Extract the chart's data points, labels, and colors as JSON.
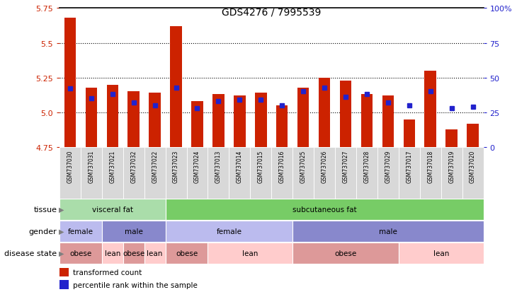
{
  "title": "GDS4276 / 7995539",
  "samples": [
    "GSM737030",
    "GSM737031",
    "GSM737021",
    "GSM737032",
    "GSM737022",
    "GSM737023",
    "GSM737024",
    "GSM737013",
    "GSM737014",
    "GSM737015",
    "GSM737016",
    "GSM737025",
    "GSM737026",
    "GSM737027",
    "GSM737028",
    "GSM737029",
    "GSM737017",
    "GSM737018",
    "GSM737019",
    "GSM737020"
  ],
  "bar_values": [
    5.68,
    5.18,
    5.2,
    5.15,
    5.14,
    5.62,
    5.08,
    5.13,
    5.12,
    5.14,
    5.05,
    5.18,
    5.25,
    5.23,
    5.13,
    5.12,
    4.95,
    5.3,
    4.88,
    4.92
  ],
  "percentile": [
    42,
    35,
    38,
    32,
    30,
    43,
    28,
    33,
    34,
    34,
    30,
    40,
    43,
    36,
    38,
    32,
    30,
    40,
    28,
    29
  ],
  "ymin": 4.75,
  "ymax": 5.75,
  "yticks": [
    4.75,
    5.0,
    5.25,
    5.5,
    5.75
  ],
  "bar_color": "#cc2200",
  "dot_color": "#2222cc",
  "tissue_groups": [
    {
      "label": "visceral fat",
      "start": 0,
      "end": 5,
      "color": "#aaddaa"
    },
    {
      "label": "subcutaneous fat",
      "start": 5,
      "end": 20,
      "color": "#77cc66"
    }
  ],
  "gender_groups": [
    {
      "label": "female",
      "start": 0,
      "end": 2,
      "color": "#bbbbee"
    },
    {
      "label": "male",
      "start": 2,
      "end": 5,
      "color": "#8888cc"
    },
    {
      "label": "female",
      "start": 5,
      "end": 11,
      "color": "#bbbbee"
    },
    {
      "label": "male",
      "start": 11,
      "end": 20,
      "color": "#8888cc"
    }
  ],
  "disease_groups": [
    {
      "label": "obese",
      "start": 0,
      "end": 2,
      "color": "#dd9999"
    },
    {
      "label": "lean",
      "start": 2,
      "end": 3,
      "color": "#ffcccc"
    },
    {
      "label": "obese",
      "start": 3,
      "end": 4,
      "color": "#dd9999"
    },
    {
      "label": "lean",
      "start": 4,
      "end": 5,
      "color": "#ffcccc"
    },
    {
      "label": "obese",
      "start": 5,
      "end": 7,
      "color": "#dd9999"
    },
    {
      "label": "lean",
      "start": 7,
      "end": 11,
      "color": "#ffcccc"
    },
    {
      "label": "obese",
      "start": 11,
      "end": 16,
      "color": "#dd9999"
    },
    {
      "label": "lean",
      "start": 16,
      "end": 20,
      "color": "#ffcccc"
    }
  ],
  "legend_bar_label": "transformed count",
  "legend_dot_label": "percentile rank within the sample",
  "row_labels": [
    "tissue",
    "gender",
    "disease state"
  ]
}
